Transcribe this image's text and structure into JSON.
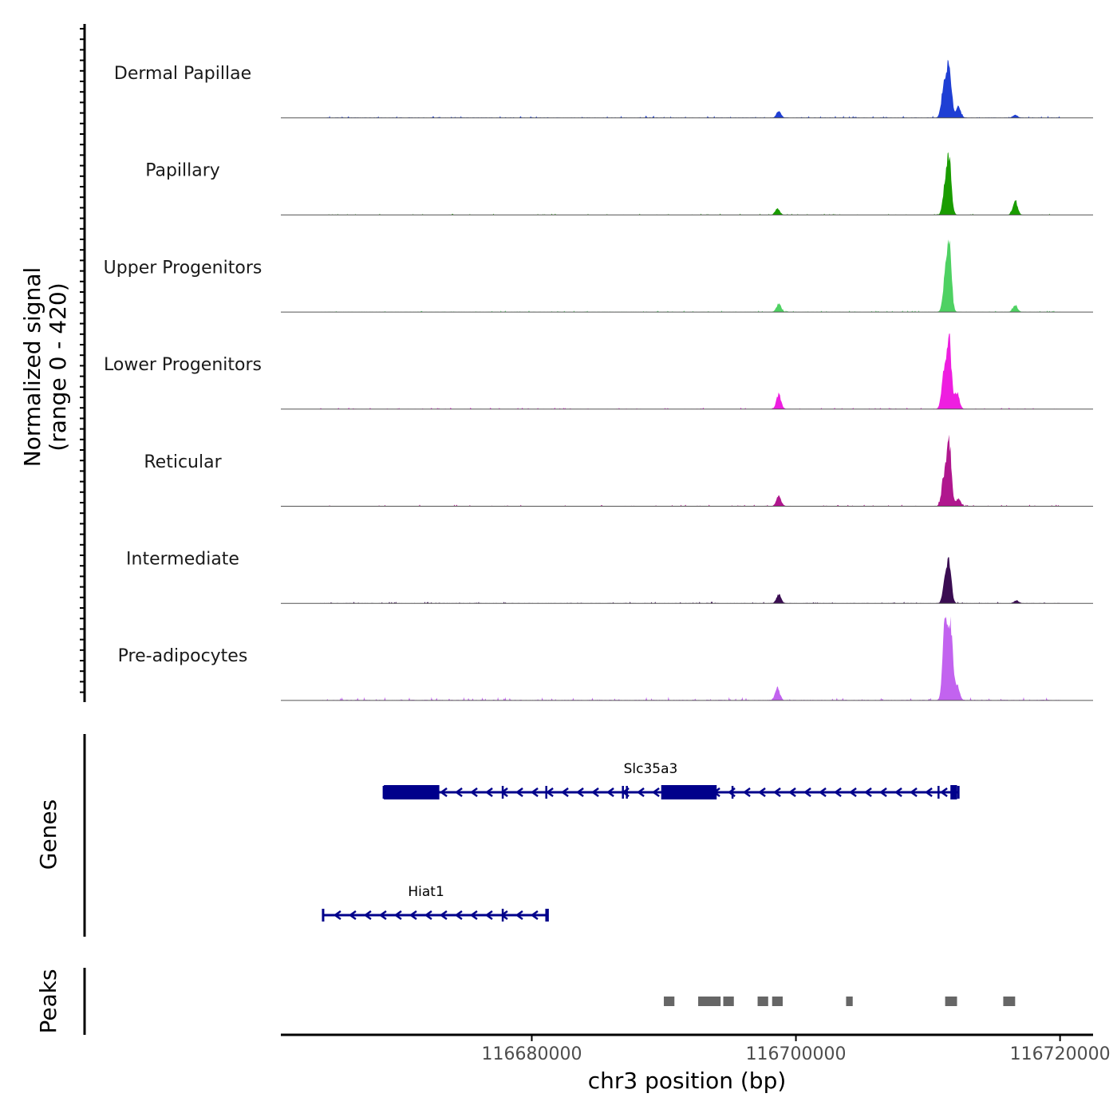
{
  "chart_data": {
    "type": "coverage",
    "y_title_line1": "Normalized signal",
    "y_title_line2": "(range 0 - 420)",
    "ylim": [
      0,
      420
    ],
    "x_title": "chr3 position (bp)",
    "xlim": [
      116661000,
      116722500
    ],
    "x_ticks": [
      116680000,
      116700000,
      116720000
    ],
    "x_tick_labels": [
      "116680000",
      "116700000",
      "116720000"
    ],
    "tracks": [
      {
        "name": "Dermal Papillae",
        "color": "#1f3fd4",
        "peaks": [
          {
            "pos": 116698700,
            "h": 35
          },
          {
            "pos": 116711200,
            "h": 180
          },
          {
            "pos": 116711600,
            "h": 300
          },
          {
            "pos": 116712300,
            "h": 60
          },
          {
            "pos": 116716600,
            "h": 15
          }
        ],
        "noise": 10,
        "noise_range": [
          116664000,
          116720000
        ],
        "seed": 11
      },
      {
        "name": "Papillary",
        "color": "#1a9c00",
        "peaks": [
          {
            "pos": 116698600,
            "h": 35
          },
          {
            "pos": 116711300,
            "h": 140
          },
          {
            "pos": 116711600,
            "h": 290
          },
          {
            "pos": 116716600,
            "h": 80
          }
        ],
        "noise": 6,
        "noise_range": [
          116664000,
          116720000
        ],
        "seed": 23
      },
      {
        "name": "Upper Progenitors",
        "color": "#4ed162",
        "peaks": [
          {
            "pos": 116698700,
            "h": 45
          },
          {
            "pos": 116711300,
            "h": 160
          },
          {
            "pos": 116711600,
            "h": 350
          },
          {
            "pos": 116716600,
            "h": 35
          }
        ],
        "noise": 7,
        "noise_range": [
          116664000,
          116720000
        ],
        "seed": 37
      },
      {
        "name": "Lower Progenitors",
        "color": "#ee1ee0",
        "peaks": [
          {
            "pos": 116698700,
            "h": 80
          },
          {
            "pos": 116711200,
            "h": 190
          },
          {
            "pos": 116711600,
            "h": 380
          },
          {
            "pos": 116712200,
            "h": 90
          }
        ],
        "noise": 8,
        "noise_range": [
          116664000,
          116720000
        ],
        "seed": 41
      },
      {
        "name": "Reticular",
        "color": "#b0178e",
        "peaks": [
          {
            "pos": 116698700,
            "h": 55
          },
          {
            "pos": 116711200,
            "h": 150
          },
          {
            "pos": 116711600,
            "h": 350
          },
          {
            "pos": 116712300,
            "h": 40
          }
        ],
        "noise": 8,
        "noise_range": [
          116664000,
          116720000
        ],
        "seed": 53
      },
      {
        "name": "Intermediate",
        "color": "#3a0d52",
        "peaks": [
          {
            "pos": 116698700,
            "h": 50
          },
          {
            "pos": 116711300,
            "h": 110
          },
          {
            "pos": 116711600,
            "h": 210
          },
          {
            "pos": 116716700,
            "h": 15
          }
        ],
        "noise": 8,
        "noise_range": [
          116664000,
          116720000
        ],
        "seed": 67
      },
      {
        "name": "Pre-adipocytes",
        "color": "#c263ef",
        "peaks": [
          {
            "pos": 116698600,
            "h": 70
          },
          {
            "pos": 116711300,
            "h": 420
          },
          {
            "pos": 116711700,
            "h": 390
          },
          {
            "pos": 116712200,
            "h": 80
          }
        ],
        "noise": 18,
        "noise_range": [
          116664000,
          116720000
        ],
        "seed": 79
      }
    ],
    "genes_label": "Genes",
    "gene_color": "#00008b",
    "genes": [
      {
        "name": "Slc35a3",
        "start": 116668800,
        "end": 116712300,
        "strand": "-",
        "exons": [
          [
            116668800,
            116673000
          ],
          [
            116689800,
            116694000
          ],
          [
            116711700,
            116712200
          ]
        ],
        "introns_marks": [
          116677800,
          116681100,
          116686900,
          116687200,
          116695200,
          116710800
        ]
      },
      {
        "name": "Hiat1",
        "start": 116664200,
        "end": 116681200,
        "strand": "-",
        "exons": [],
        "introns_marks": [
          116677800,
          116681100
        ]
      }
    ],
    "peaks_label": "Peaks",
    "peak_color": "#666666",
    "peak_regions": [
      [
        116690000,
        116690800
      ],
      [
        116692600,
        116694300
      ],
      [
        116694500,
        116695300
      ],
      [
        116697100,
        116697900
      ],
      [
        116698200,
        116699000
      ],
      [
        116703800,
        116704300
      ],
      [
        116711300,
        116712200
      ],
      [
        116715700,
        116716600
      ]
    ]
  }
}
